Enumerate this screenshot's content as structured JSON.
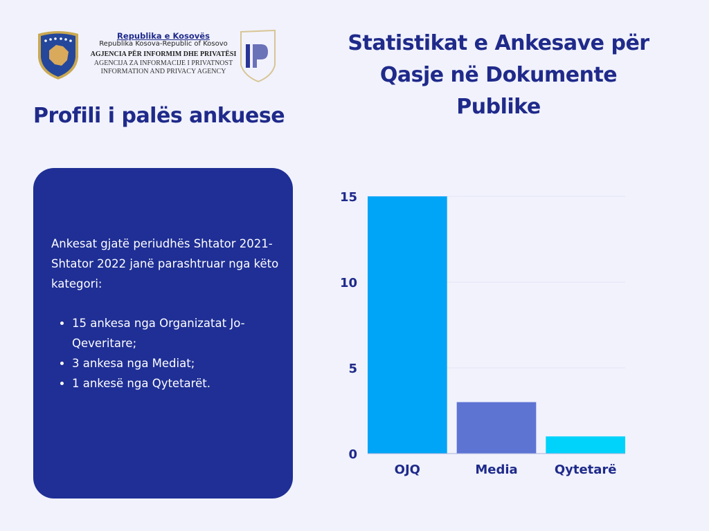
{
  "header": {
    "line1": "Republika e Kosovës",
    "line2": "Republika Kosova-Republic of Kosovo",
    "line3": "AGJENCIA PËR INFORMIM DHE PRIVATËSI",
    "line4": "AGENCIJA ZA INFORMACIJE I PRIVATNOST",
    "line5": "INFORMATION AND PRIVACY AGENCY",
    "logo_text": "IP"
  },
  "profile_title": "Profili i palës ankuese",
  "main_title": "Statistikat e Ankesave për Qasje në Dokumente Publike",
  "panel": {
    "intro": "Ankesat gjatë periudhës Shtator 2021- Shtator 2022 janë parashtruar nga këto kategori:",
    "items": [
      "15 ankesa nga Organizatat Jo-Qeveritare;",
      "3 ankesa nga Mediat;",
      "1 ankesë nga Qytetarët."
    ]
  },
  "colors": {
    "navy": "#1f2f95",
    "title": "#1f2a8a",
    "bar1": "#00a5f7",
    "bar2": "#5d74d3",
    "bar3": "#00d3fb"
  },
  "chart_data": {
    "type": "bar",
    "title": "",
    "xlabel": "",
    "ylabel": "",
    "categories": [
      "OJQ",
      "Media",
      "Qytetarë"
    ],
    "values": [
      15,
      3,
      1
    ],
    "colors": [
      "#00a5f7",
      "#5d74d3",
      "#00d3fb"
    ],
    "ylim": [
      0,
      15
    ],
    "yticks": [
      0,
      5,
      10,
      15
    ],
    "grid": true,
    "legend": "none"
  }
}
